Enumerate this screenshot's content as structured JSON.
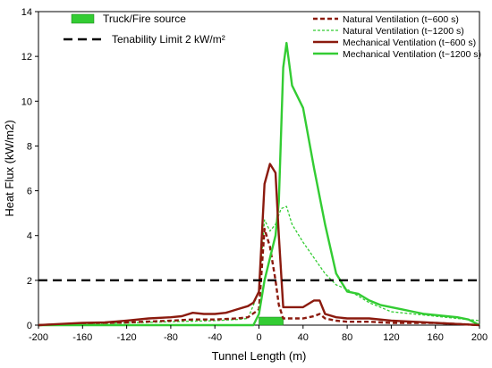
{
  "chart_data": {
    "type": "line",
    "xlabel": "Tunnel Length (m)",
    "ylabel": "Heat Flux (kW/m2)",
    "xlim": [
      -200,
      200
    ],
    "ylim": [
      0,
      14
    ],
    "xticks": [
      "-200",
      "-160",
      "-120",
      "-80",
      "-40",
      "0",
      "40",
      "80",
      "120",
      "160",
      "200"
    ],
    "yticks": [
      "0",
      "2",
      "4",
      "6",
      "8",
      "10",
      "12",
      "14"
    ],
    "grid": false,
    "legend_left": {
      "source_label": "Truck/Fire source",
      "tenability_label": "Tenability Limit 2 kW/m²"
    },
    "legend_position": "top-right",
    "fire_source": {
      "x_start": 0,
      "x_end": 22,
      "color": "#33cc33"
    },
    "tenability_limit": {
      "y": 2,
      "color": "#000000"
    },
    "series": [
      {
        "name": "Natural Ventilation  (t~600 s)",
        "color": "#8b1a0e",
        "style": "dashed",
        "x": [
          -200,
          -160,
          -120,
          -80,
          -60,
          -40,
          -20,
          -10,
          0,
          5,
          10,
          15,
          18,
          22,
          30,
          40,
          50,
          55,
          60,
          70,
          80,
          100,
          120,
          140,
          160,
          180,
          200
        ],
        "y": [
          0.0,
          0.08,
          0.12,
          0.2,
          0.25,
          0.25,
          0.3,
          0.35,
          0.7,
          4.3,
          3.5,
          2.0,
          0.9,
          0.3,
          0.3,
          0.3,
          0.4,
          0.5,
          0.3,
          0.2,
          0.15,
          0.15,
          0.1,
          0.1,
          0.1,
          0.05,
          0.0
        ]
      },
      {
        "name": "Natural Ventilation (t~1200 s)",
        "color": "#33cc33",
        "style": "dashed",
        "x": [
          -200,
          -160,
          -120,
          -80,
          -40,
          -20,
          -10,
          0,
          5,
          10,
          15,
          20,
          25,
          30,
          40,
          50,
          60,
          70,
          80,
          100,
          120,
          140,
          160,
          180,
          200
        ],
        "y": [
          0.0,
          0.05,
          0.1,
          0.15,
          0.2,
          0.25,
          0.3,
          1.5,
          4.7,
          4.2,
          4.5,
          5.2,
          5.3,
          4.5,
          3.7,
          3.0,
          2.3,
          1.8,
          1.6,
          1.0,
          0.6,
          0.5,
          0.4,
          0.3,
          0.2
        ]
      },
      {
        "name": "Mechanical Ventilation (t~600 s)",
        "color": "#8b1a0e",
        "style": "solid",
        "x": [
          -200,
          -180,
          -160,
          -140,
          -120,
          -100,
          -80,
          -70,
          -60,
          -50,
          -40,
          -30,
          -20,
          -10,
          -5,
          0,
          5,
          10,
          15,
          18,
          22,
          30,
          40,
          50,
          55,
          60,
          70,
          80,
          100,
          120,
          140,
          160,
          180,
          200
        ],
        "y": [
          0.0,
          0.05,
          0.1,
          0.12,
          0.2,
          0.3,
          0.35,
          0.4,
          0.55,
          0.5,
          0.5,
          0.55,
          0.7,
          0.85,
          1.0,
          1.5,
          6.3,
          7.2,
          6.8,
          4.0,
          0.8,
          0.8,
          0.8,
          1.1,
          1.1,
          0.5,
          0.35,
          0.3,
          0.3,
          0.2,
          0.15,
          0.1,
          0.05,
          0.0
        ]
      },
      {
        "name": "Mechanical Ventilation (t~1200 s)",
        "color": "#33cc33",
        "style": "solid",
        "x": [
          -200,
          -100,
          -40,
          -20,
          -10,
          -5,
          0,
          5,
          10,
          15,
          18,
          22,
          25,
          30,
          40,
          50,
          60,
          70,
          80,
          90,
          100,
          110,
          120,
          130,
          140,
          150,
          160,
          170,
          180,
          190,
          200
        ],
        "y": [
          0.0,
          0.0,
          0.0,
          0.0,
          0.0,
          0.0,
          0.5,
          2.0,
          3.0,
          4.0,
          5.5,
          11.5,
          12.6,
          10.7,
          9.7,
          7.0,
          4.5,
          2.3,
          1.5,
          1.4,
          1.1,
          0.9,
          0.8,
          0.7,
          0.6,
          0.5,
          0.45,
          0.4,
          0.35,
          0.25,
          0.0
        ]
      }
    ]
  }
}
